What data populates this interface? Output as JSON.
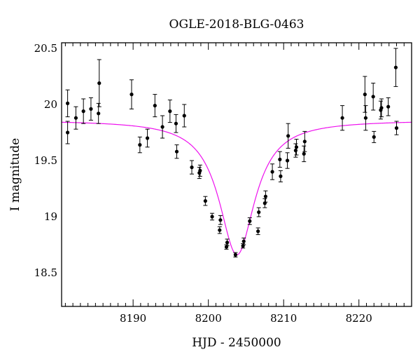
{
  "chart_data": {
    "type": "scatter",
    "title": "OGLE-2018-BLG-0463",
    "xlabel": "HJD - 2450000",
    "ylabel": "I magnitude",
    "xlim": [
      8180.5,
      8227.0
    ],
    "ylim": [
      20.55,
      18.2
    ],
    "y_inverted": true,
    "grid": false,
    "xticks": [
      8190,
      8200,
      8210,
      8220
    ],
    "xtick_labels": [
      "8190",
      "8200",
      "8210",
      "8220"
    ],
    "yticks": [
      18.5,
      19.0,
      19.5,
      20.0,
      20.5
    ],
    "ytick_labels": [
      "18.5",
      "19",
      "19.5",
      "20",
      "20.5"
    ],
    "colors": {
      "points": "#000000",
      "model": "#ee11ee",
      "frame": "#000000"
    },
    "series": [
      {
        "type": "scatter",
        "x": [
          8181.3,
          8181.3,
          8182.4,
          8183.4,
          8184.4,
          8185.4,
          8185.5,
          8189.8,
          8190.9,
          8191.9,
          8192.9,
          8193.9,
          8194.9,
          8195.7,
          8195.8,
          8196.8,
          8197.8,
          8198.8,
          8198.9,
          8199.6,
          8200.5,
          8201.5,
          8201.6,
          8202.4,
          8202.5,
          8203.6,
          8204.6,
          8204.7,
          8205.5,
          8206.6,
          8206.7,
          8207.5,
          8207.6,
          8208.5,
          8209.5,
          8209.6,
          8210.5,
          8210.6,
          8211.6,
          8211.7,
          8212.7,
          8212.8,
          8217.8,
          8220.8,
          8220.9,
          8221.9,
          8222.0,
          8222.9,
          8223.0,
          8223.9,
          8224.9,
          8225.0
        ],
        "y": [
          19.75,
          20.01,
          19.88,
          19.94,
          19.96,
          19.92,
          20.19,
          20.09,
          19.64,
          19.7,
          19.99,
          19.8,
          19.94,
          19.83,
          19.58,
          19.9,
          19.44,
          19.39,
          19.41,
          19.14,
          19.0,
          18.88,
          18.97,
          18.73,
          18.77,
          18.66,
          18.74,
          18.78,
          18.96,
          18.87,
          19.04,
          19.12,
          19.18,
          19.4,
          19.51,
          19.36,
          19.5,
          19.72,
          19.59,
          19.62,
          19.56,
          19.67,
          19.88,
          20.09,
          19.88,
          20.07,
          19.71,
          19.95,
          19.97,
          19.98,
          20.33,
          19.79
        ],
        "err": [
          0.1,
          0.12,
          0.1,
          0.11,
          0.1,
          0.09,
          0.21,
          0.13,
          0.07,
          0.08,
          0.1,
          0.1,
          0.1,
          0.08,
          0.06,
          0.1,
          0.06,
          0.05,
          0.05,
          0.04,
          0.03,
          0.03,
          0.04,
          0.02,
          0.03,
          0.02,
          0.02,
          0.03,
          0.03,
          0.03,
          0.04,
          0.04,
          0.05,
          0.07,
          0.07,
          0.05,
          0.07,
          0.11,
          0.06,
          0.07,
          0.07,
          0.09,
          0.11,
          0.16,
          0.11,
          0.12,
          0.05,
          0.08,
          0.08,
          0.08,
          0.17,
          0.06
        ]
      },
      {
        "type": "line",
        "model": "lorentzian",
        "baseline_mag": 19.86,
        "peak_time": 8203.8,
        "peak_mag": 18.66,
        "half_width": 2.9
      }
    ]
  }
}
